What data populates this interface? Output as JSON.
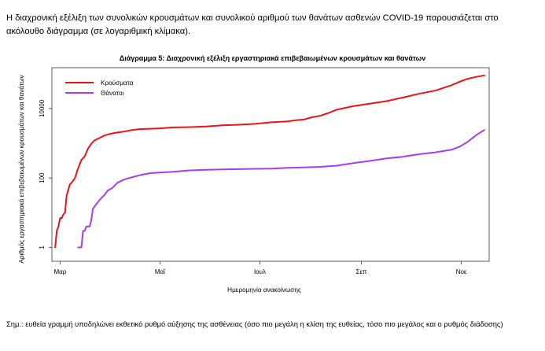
{
  "intro_text": "Η διαχρονική εξέλιξη των συνολικών κρουσμάτων και συνολικού αριθμού των θανάτων ασθενών COVID-19 παρουσιάζεται στο ακόλουθο διάγραμμα (σε λογαριθμική κλίμακα).",
  "note_text": "Σημ.: ευθεία γραμμή υποδηλώνει εκθετικό ρυθμό αύξησης της ασθένειας (όσο πιο μεγάλη η κλίση της ευθείας, τόσο πιο μεγάλος και ο ρυθμός διάδοσης)",
  "chart_data": {
    "type": "line",
    "title": "Διάγραμμα 5: Διαχρονική εξέλιξη εργαστηριακά επιβεβαιωμένων κρουσμάτων και θανάτων",
    "xlabel": "Ημερομηνία ανακοίνωσης",
    "ylabel": "Αριθμός εργαστηριακά επιβεβαιωμένων κρουσμάτων και θανάτων",
    "x_unit": "day of year 2020",
    "xlim": [
      56,
      323
    ],
    "x_ticks": [
      {
        "label": "Μαρ",
        "x": 61
      },
      {
        "label": "Μαΐ",
        "x": 122
      },
      {
        "label": "Ιουλ",
        "x": 183
      },
      {
        "label": "Σεπ",
        "x": 245
      },
      {
        "label": "Νοε",
        "x": 306
      }
    ],
    "y_scale": "log10",
    "ylim": [
      0.4,
      150000
    ],
    "y_ticks": [
      {
        "label": "1",
        "value": 1
      },
      {
        "label": "100",
        "value": 100
      },
      {
        "label": "10000",
        "value": 10000
      }
    ],
    "legend_position": "top-left",
    "grid": false,
    "colors": {
      "cases": "#e8141a",
      "deaths": "#a63df0",
      "axis": "#333333"
    },
    "series": [
      {
        "name": "Κρούσματα",
        "key": "cases",
        "x": [
          58,
          59,
          60,
          61,
          62,
          63,
          64,
          65,
          66,
          67,
          68,
          70,
          72,
          74,
          76,
          78,
          80,
          82,
          85,
          88,
          91,
          95,
          100,
          105,
          110,
          116,
          122,
          130,
          140,
          150,
          160,
          170,
          180,
          190,
          200,
          205,
          210,
          215,
          220,
          225,
          230,
          240,
          250,
          260,
          270,
          280,
          290,
          300,
          305,
          310,
          315,
          320
        ],
        "values": [
          1,
          3,
          4,
          7,
          7,
          9,
          10,
          31,
          45,
          66,
          73,
          99,
          190,
          331,
          418,
          695,
          966,
          1212,
          1415,
          1673,
          1832,
          2011,
          2170,
          2408,
          2566,
          2620,
          2691,
          2853,
          2918,
          3049,
          3287,
          3409,
          3622,
          4012,
          4279,
          4587,
          4855,
          5623,
          6177,
          7472,
          9280,
          11672,
          13730,
          16286,
          20541,
          26469,
          32752,
          46892,
          59290,
          71788,
          81412,
          90121
        ]
      },
      {
        "name": "Θάνατοι",
        "key": "deaths",
        "x": [
          72,
          73,
          74,
          75,
          76,
          77,
          78,
          79,
          80,
          81,
          82,
          84,
          86,
          88,
          90,
          93,
          96,
          100,
          105,
          110,
          116,
          122,
          130,
          140,
          150,
          160,
          170,
          180,
          190,
          200,
          210,
          220,
          230,
          240,
          250,
          260,
          270,
          280,
          290,
          300,
          305,
          310,
          315,
          320
        ],
        "values": [
          1,
          1,
          1,
          3,
          3,
          4,
          4,
          4,
          6,
          13,
          15,
          20,
          26,
          32,
          43,
          52,
          73,
          90,
          105,
          121,
          138,
          144,
          151,
          166,
          173,
          176,
          180,
          184,
          187,
          196,
          202,
          210,
          226,
          268,
          310,
          364,
          406,
          483,
          547,
          651,
          800,
          1107,
          1710,
          2406
        ]
      }
    ]
  }
}
